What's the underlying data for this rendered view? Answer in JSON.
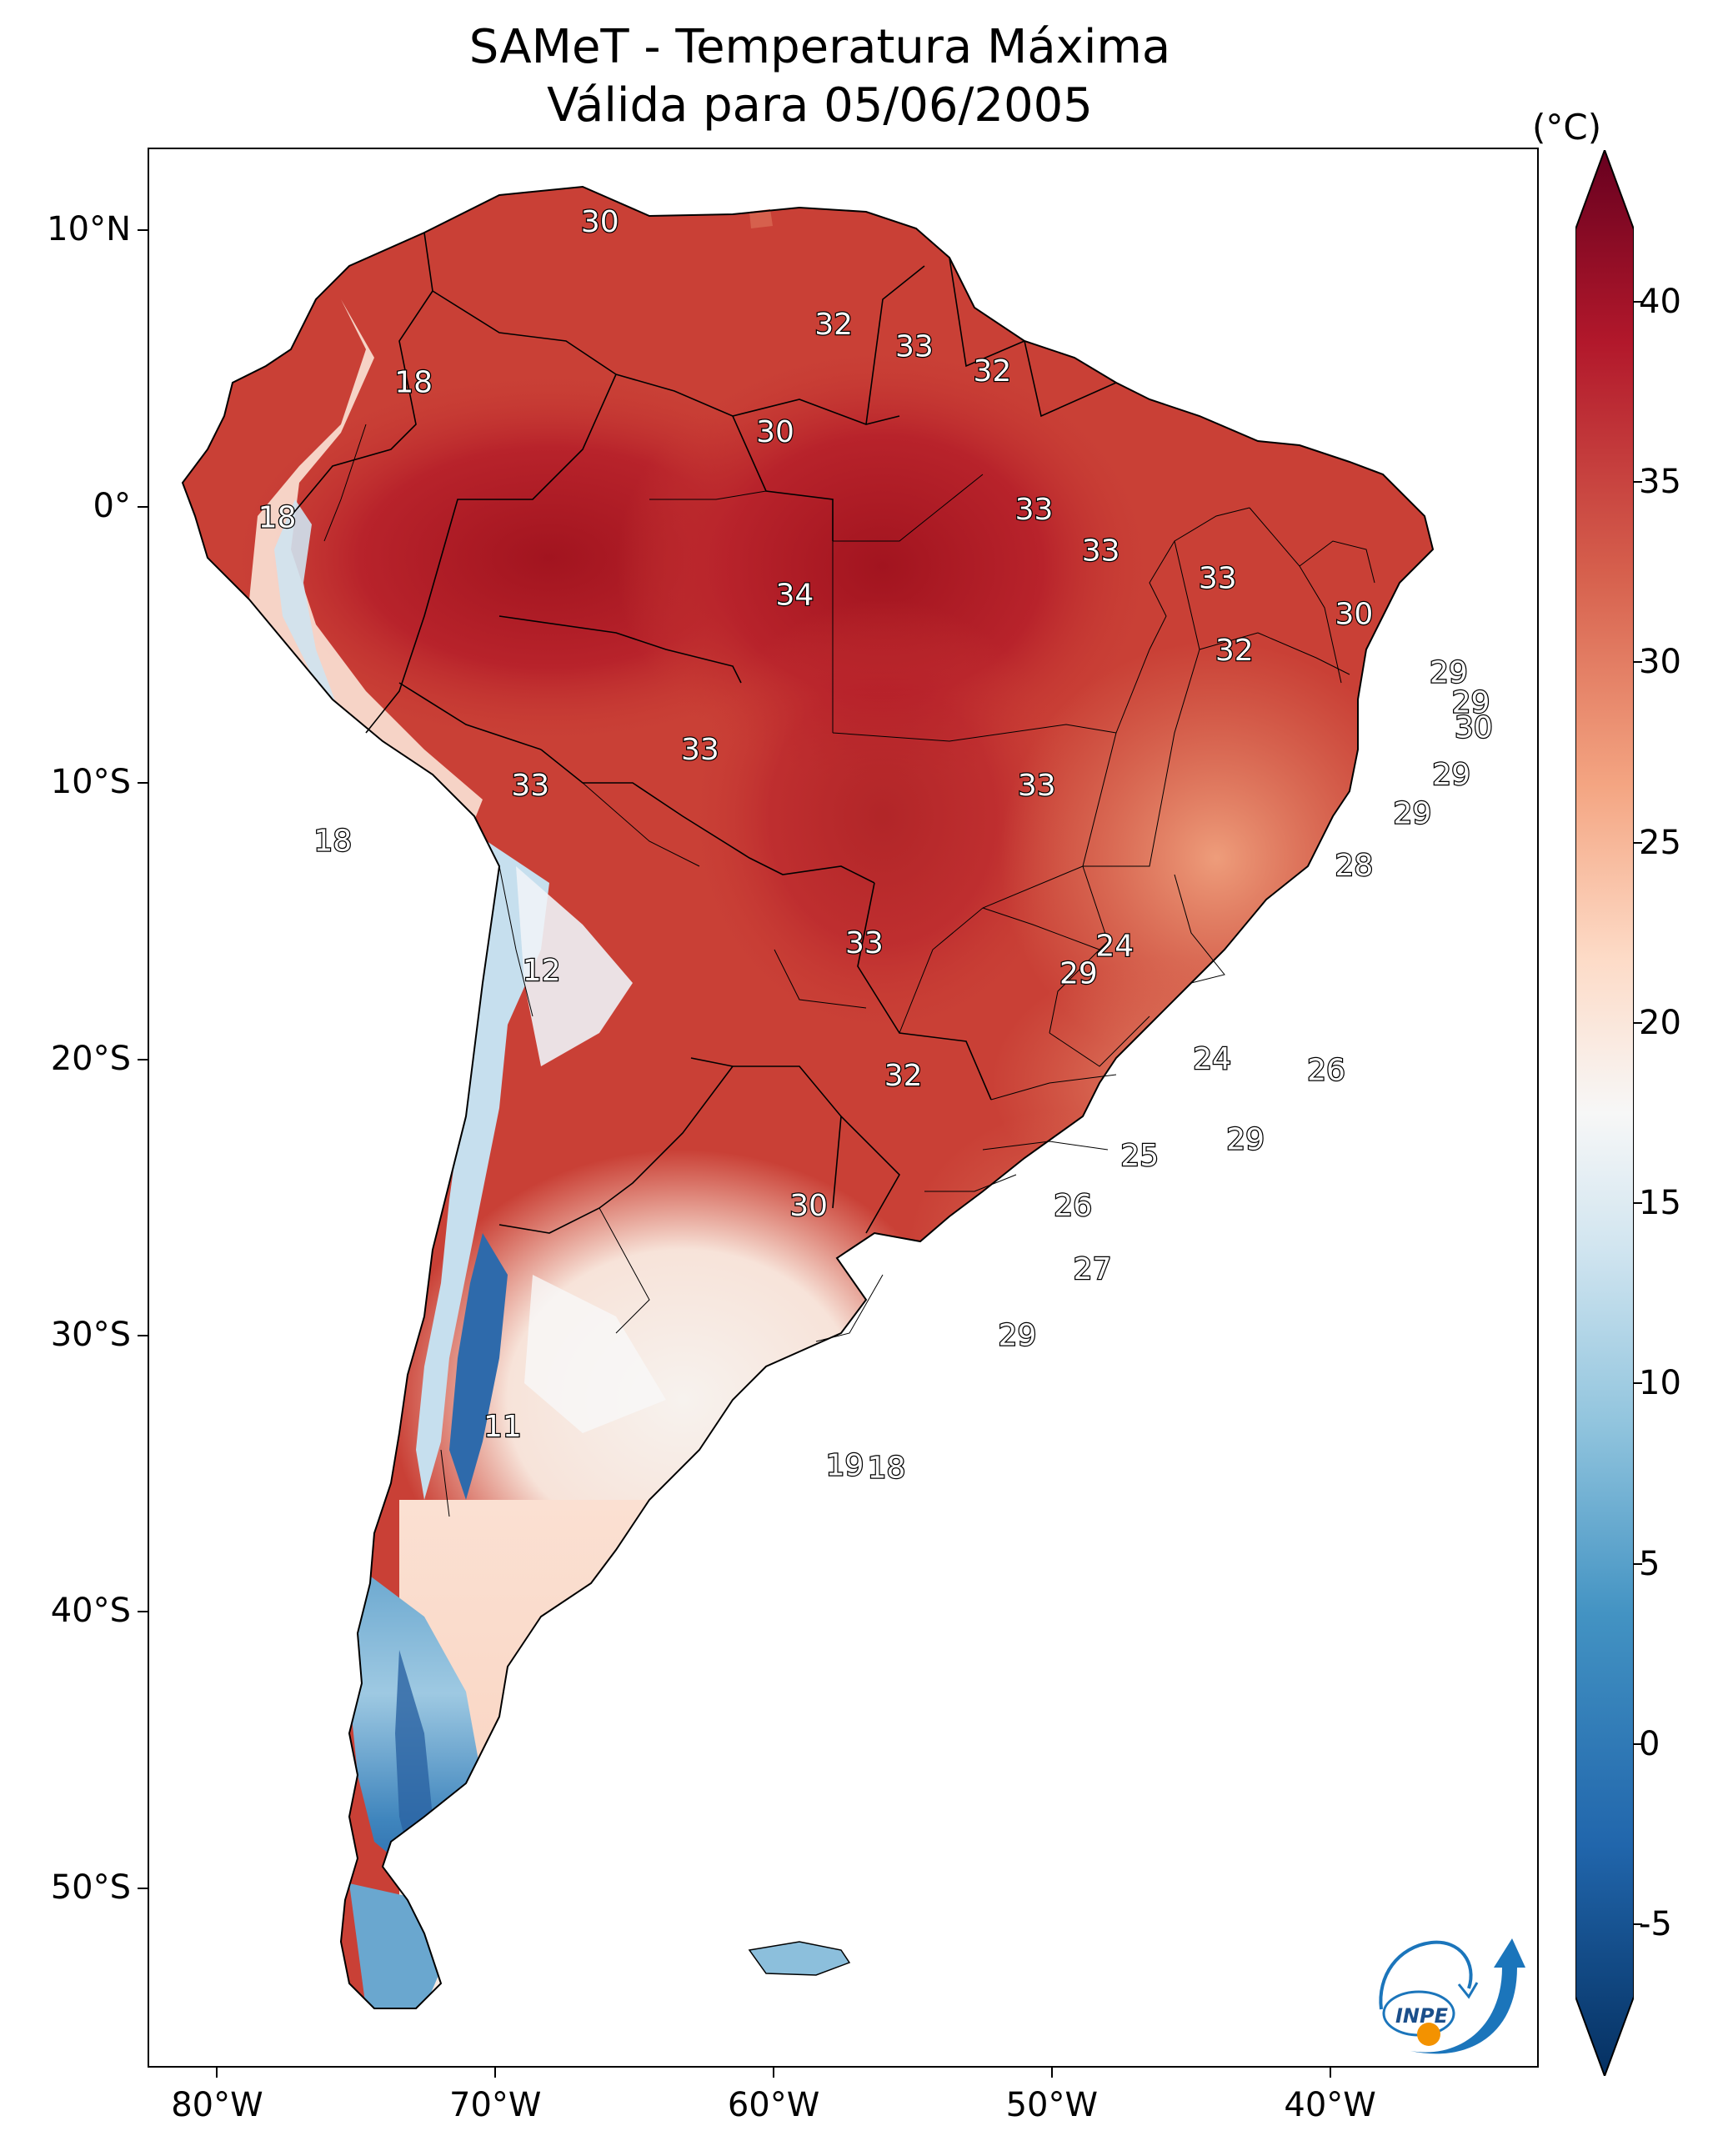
{
  "title": "SAMeT - Temperatura Máxima",
  "subtitle": "Válida para 05/06/2005",
  "colorbar": {
    "unit": "(°C)",
    "min": -7,
    "max": 42,
    "ticks": [
      "40",
      "35",
      "30",
      "25",
      "20",
      "15",
      "10",
      "5",
      "0",
      "-5"
    ],
    "tick_values": [
      40,
      35,
      30,
      25,
      20,
      15,
      10,
      5,
      0,
      -5
    ],
    "colors": [
      "#053061",
      "#2166ac",
      "#4393c3",
      "#92c5de",
      "#d1e5f0",
      "#f7f7f7",
      "#fddbc7",
      "#f4a582",
      "#d6604d",
      "#b2182b",
      "#67001f"
    ]
  },
  "axes": {
    "lat_labels": [
      "10°N",
      "0°",
      "10°S",
      "20°S",
      "30°S",
      "40°S",
      "50°S"
    ],
    "lat_values": [
      10,
      0,
      -10,
      -20,
      -30,
      -40,
      -50
    ],
    "lon_labels": [
      "80°W",
      "70°W",
      "60°W",
      "50°W",
      "40°W"
    ],
    "lon_values": [
      -80,
      -70,
      -60,
      -50,
      -40
    ],
    "lon_range": [
      -82.5,
      -32.5
    ],
    "lat_range": [
      -56.5,
      13
    ]
  },
  "contour_labels": [
    {
      "text": "30",
      "lon": -66.3,
      "lat": 10.4
    },
    {
      "text": "32",
      "lon": -57.9,
      "lat": 6.7
    },
    {
      "text": "33",
      "lon": -55.0,
      "lat": 5.9
    },
    {
      "text": "32",
      "lon": -52.2,
      "lat": 5.0
    },
    {
      "text": "18",
      "lon": -73.0,
      "lat": 4.6
    },
    {
      "text": "30",
      "lon": -60.0,
      "lat": 2.8
    },
    {
      "text": "33",
      "lon": -50.7,
      "lat": 0.0
    },
    {
      "text": "18",
      "lon": -77.9,
      "lat": -0.3
    },
    {
      "text": "33",
      "lon": -48.3,
      "lat": -1.5
    },
    {
      "text": "33",
      "lon": -44.1,
      "lat": -2.5
    },
    {
      "text": "34",
      "lon": -59.3,
      "lat": -3.1
    },
    {
      "text": "30",
      "lon": -39.2,
      "lat": -3.8
    },
    {
      "text": "32",
      "lon": -43.5,
      "lat": -5.1
    },
    {
      "text": "29",
      "lon": -35.8,
      "lat": -5.9
    },
    {
      "text": "29",
      "lon": -35.0,
      "lat": -7.0
    },
    {
      "text": "30",
      "lon": -34.9,
      "lat": -7.9
    },
    {
      "text": "33",
      "lon": -62.7,
      "lat": -8.7
    },
    {
      "text": "29",
      "lon": -35.7,
      "lat": -9.6
    },
    {
      "text": "33",
      "lon": -50.6,
      "lat": -10.0
    },
    {
      "text": "33",
      "lon": -68.8,
      "lat": -10.0
    },
    {
      "text": "29",
      "lon": -37.1,
      "lat": -11.0
    },
    {
      "text": "18",
      "lon": -75.9,
      "lat": -12.0
    },
    {
      "text": "28",
      "lon": -39.2,
      "lat": -12.9
    },
    {
      "text": "24",
      "lon": -47.8,
      "lat": -15.8
    },
    {
      "text": "33",
      "lon": -56.8,
      "lat": -15.7
    },
    {
      "text": "29",
      "lon": -49.1,
      "lat": -16.8
    },
    {
      "text": "12",
      "lon": -68.4,
      "lat": -16.7
    },
    {
      "text": "24",
      "lon": -44.3,
      "lat": -19.9
    },
    {
      "text": "26",
      "lon": -40.2,
      "lat": -20.3
    },
    {
      "text": "32",
      "lon": -55.4,
      "lat": -20.5
    },
    {
      "text": "29",
      "lon": -43.1,
      "lat": -22.8
    },
    {
      "text": "25",
      "lon": -46.9,
      "lat": -23.4
    },
    {
      "text": "30",
      "lon": -58.8,
      "lat": -25.2
    },
    {
      "text": "26",
      "lon": -49.3,
      "lat": -25.2
    },
    {
      "text": "27",
      "lon": -48.6,
      "lat": -27.5
    },
    {
      "text": "29",
      "lon": -51.3,
      "lat": -29.9
    },
    {
      "text": "11",
      "lon": -69.8,
      "lat": -33.2
    },
    {
      "text": "19",
      "lon": -57.5,
      "lat": -34.6
    },
    {
      "text": "18",
      "lon": -56.0,
      "lat": -34.7
    }
  ],
  "logo": {
    "text": "INPE",
    "icon": "inpe-logo-icon"
  }
}
